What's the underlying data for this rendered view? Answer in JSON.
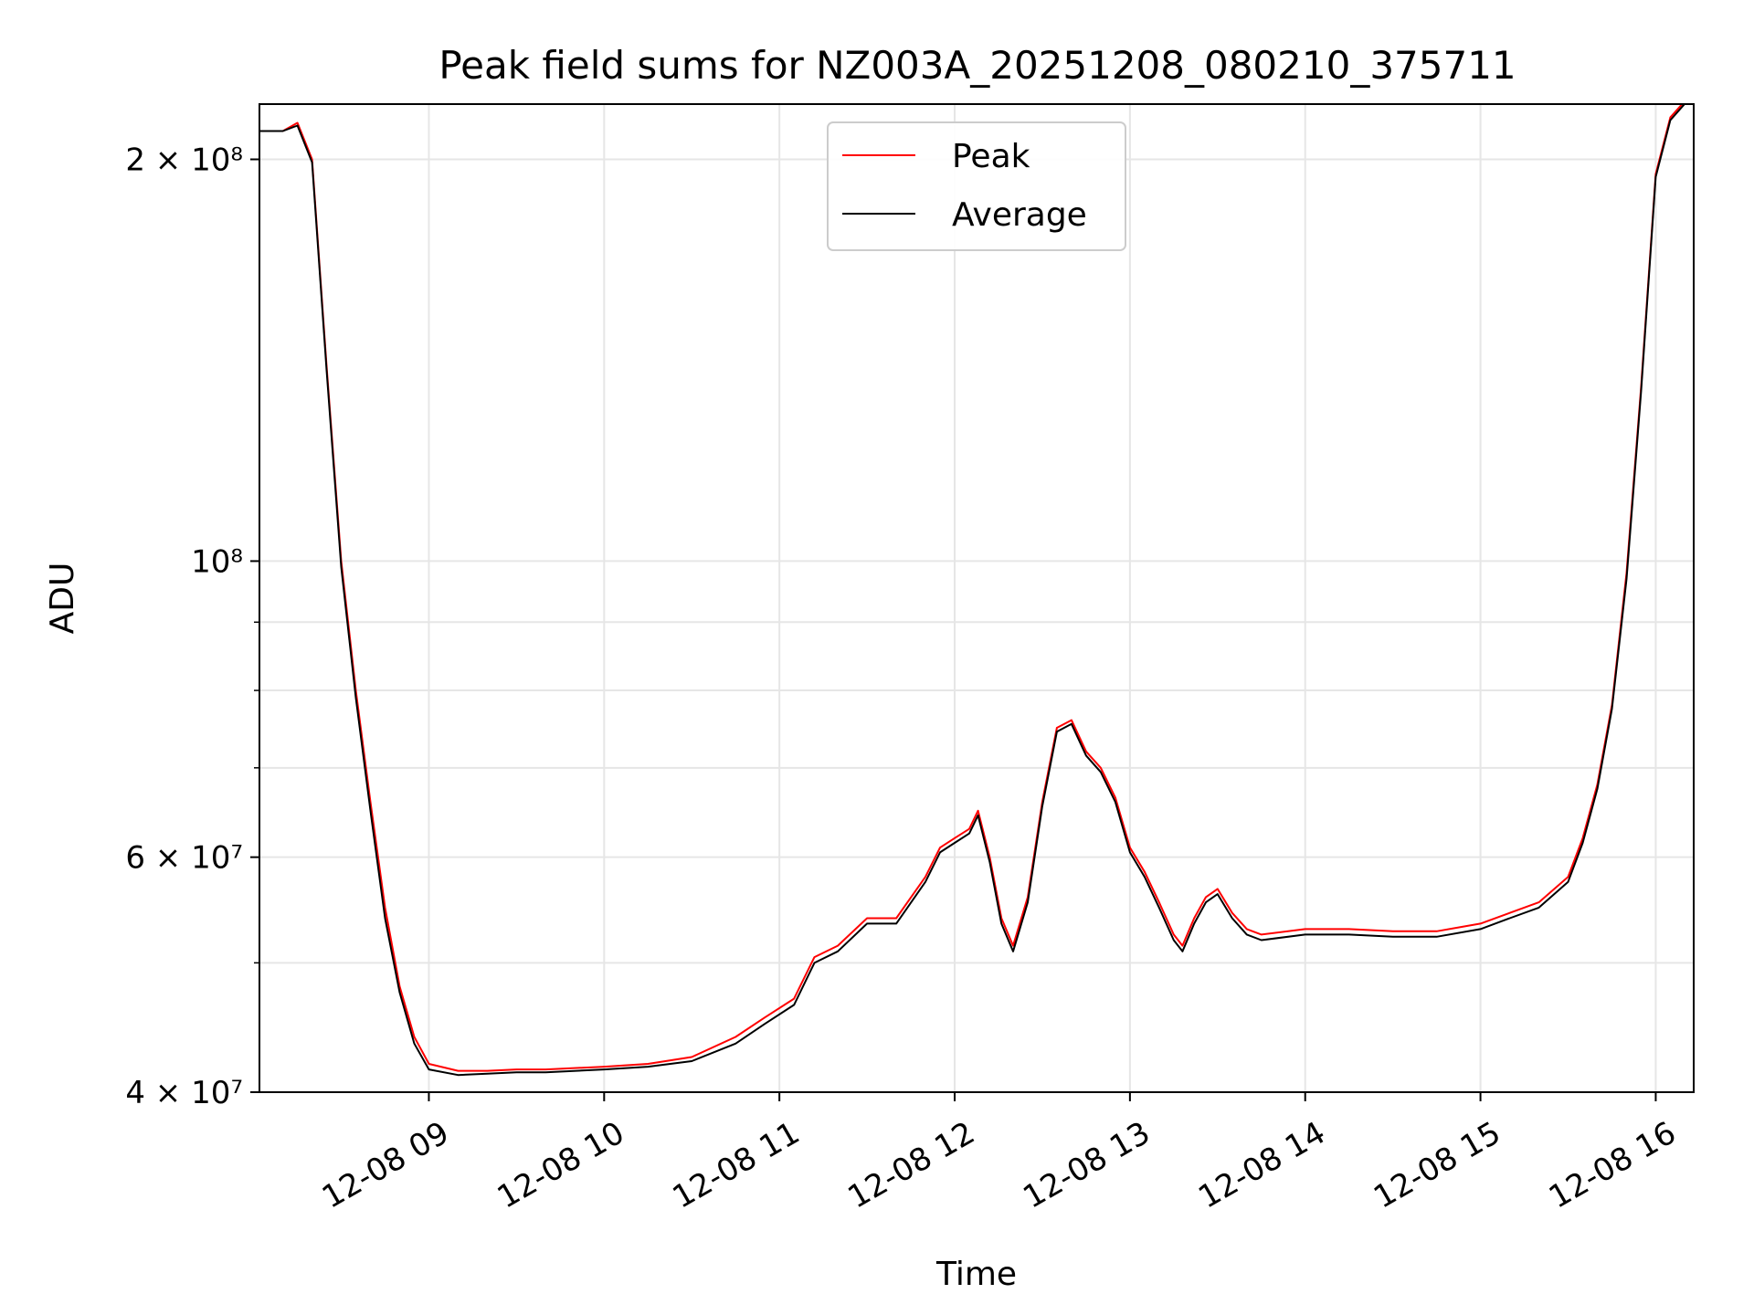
{
  "chart_data": {
    "type": "line",
    "title": "Peak field sums for NZ003A_20251208_080210_375711",
    "xlabel": "Time",
    "ylabel": "ADU",
    "yscale": "log",
    "xlim": [
      "2025-12-08 08:02",
      "2025-12-08 16:13"
    ],
    "ylim": [
      40000000,
      220000000
    ],
    "grid": true,
    "legend_position": "top-center",
    "x_ticks": [
      {
        "value": "2025-12-08 09:00",
        "label": "12-08 09"
      },
      {
        "value": "2025-12-08 10:00",
        "label": "12-08 10"
      },
      {
        "value": "2025-12-08 11:00",
        "label": "12-08 11"
      },
      {
        "value": "2025-12-08 12:00",
        "label": "12-08 12"
      },
      {
        "value": "2025-12-08 13:00",
        "label": "12-08 13"
      },
      {
        "value": "2025-12-08 14:00",
        "label": "12-08 14"
      },
      {
        "value": "2025-12-08 15:00",
        "label": "12-08 15"
      },
      {
        "value": "2025-12-08 16:00",
        "label": "12-08 16"
      }
    ],
    "y_ticks": [
      {
        "value": 40000000,
        "label": "4 × 10⁷"
      },
      {
        "value": 60000000,
        "label": "6 × 10⁷"
      },
      {
        "value": 100000000,
        "label": "10⁸"
      },
      {
        "value": 200000000,
        "label": "2 × 10⁸"
      }
    ],
    "y_minor_ticks": [
      50000000,
      70000000,
      80000000,
      90000000
    ],
    "x": [
      "2025-12-08 08:02",
      "2025-12-08 08:10",
      "2025-12-08 08:15",
      "2025-12-08 08:20",
      "2025-12-08 08:25",
      "2025-12-08 08:30",
      "2025-12-08 08:35",
      "2025-12-08 08:40",
      "2025-12-08 08:45",
      "2025-12-08 08:50",
      "2025-12-08 08:55",
      "2025-12-08 09:00",
      "2025-12-08 09:10",
      "2025-12-08 09:20",
      "2025-12-08 09:30",
      "2025-12-08 09:40",
      "2025-12-08 10:00",
      "2025-12-08 10:15",
      "2025-12-08 10:30",
      "2025-12-08 10:45",
      "2025-12-08 10:55",
      "2025-12-08 11:05",
      "2025-12-08 11:12",
      "2025-12-08 11:20",
      "2025-12-08 11:30",
      "2025-12-08 11:40",
      "2025-12-08 11:50",
      "2025-12-08 11:55",
      "2025-12-08 12:00",
      "2025-12-08 12:05",
      "2025-12-08 12:08",
      "2025-12-08 12:12",
      "2025-12-08 12:16",
      "2025-12-08 12:20",
      "2025-12-08 12:25",
      "2025-12-08 12:30",
      "2025-12-08 12:35",
      "2025-12-08 12:40",
      "2025-12-08 12:45",
      "2025-12-08 12:50",
      "2025-12-08 12:55",
      "2025-12-08 13:00",
      "2025-12-08 13:05",
      "2025-12-08 13:10",
      "2025-12-08 13:15",
      "2025-12-08 13:18",
      "2025-12-08 13:22",
      "2025-12-08 13:26",
      "2025-12-08 13:30",
      "2025-12-08 13:35",
      "2025-12-08 13:40",
      "2025-12-08 13:45",
      "2025-12-08 14:00",
      "2025-12-08 14:15",
      "2025-12-08 14:30",
      "2025-12-08 14:45",
      "2025-12-08 15:00",
      "2025-12-08 15:10",
      "2025-12-08 15:20",
      "2025-12-08 15:30",
      "2025-12-08 15:35",
      "2025-12-08 15:40",
      "2025-12-08 15:45",
      "2025-12-08 15:50",
      "2025-12-08 15:55",
      "2025-12-08 16:00",
      "2025-12-08 16:05",
      "2025-12-08 16:13"
    ],
    "series": [
      {
        "name": "Peak",
        "color": "#ff0000",
        "values": [
          210000000,
          210000000,
          213000000,
          200000000,
          140000000,
          100000000,
          80000000,
          66000000,
          55000000,
          48000000,
          44000000,
          42000000,
          41500000,
          41500000,
          41600000,
          41600000,
          41800000,
          42000000,
          42500000,
          44000000,
          45500000,
          47000000,
          50500000,
          51500000,
          54000000,
          54000000,
          58000000,
          61000000,
          62000000,
          63000000,
          65000000,
          60000000,
          54000000,
          51500000,
          56000000,
          66000000,
          75000000,
          76000000,
          72000000,
          70000000,
          66500000,
          61000000,
          58500000,
          55500000,
          52500000,
          51500000,
          54000000,
          56000000,
          56800000,
          54500000,
          53000000,
          52500000,
          53000000,
          53000000,
          52800000,
          52800000,
          53500000,
          54500000,
          55500000,
          58000000,
          62000000,
          68000000,
          78000000,
          98000000,
          135000000,
          195000000,
          215000000,
          225000000
        ]
      },
      {
        "name": "Average",
        "color": "#000000",
        "values": [
          210000000,
          210000000,
          212000000,
          199000000,
          139000000,
          99000000,
          79000000,
          65000000,
          54000000,
          47500000,
          43500000,
          41600000,
          41200000,
          41300000,
          41400000,
          41400000,
          41600000,
          41800000,
          42200000,
          43500000,
          45000000,
          46500000,
          50000000,
          51000000,
          53500000,
          53500000,
          57500000,
          60500000,
          61500000,
          62500000,
          64500000,
          59500000,
          53500000,
          51000000,
          55500000,
          65500000,
          74500000,
          75500000,
          71500000,
          69500000,
          66000000,
          60500000,
          58000000,
          55000000,
          52000000,
          51000000,
          53500000,
          55500000,
          56300000,
          54000000,
          52500000,
          52000000,
          52500000,
          52500000,
          52300000,
          52300000,
          53000000,
          54000000,
          55000000,
          57500000,
          61500000,
          67500000,
          77500000,
          97000000,
          134000000,
          194000000,
          214000000,
          224000000
        ]
      }
    ]
  }
}
